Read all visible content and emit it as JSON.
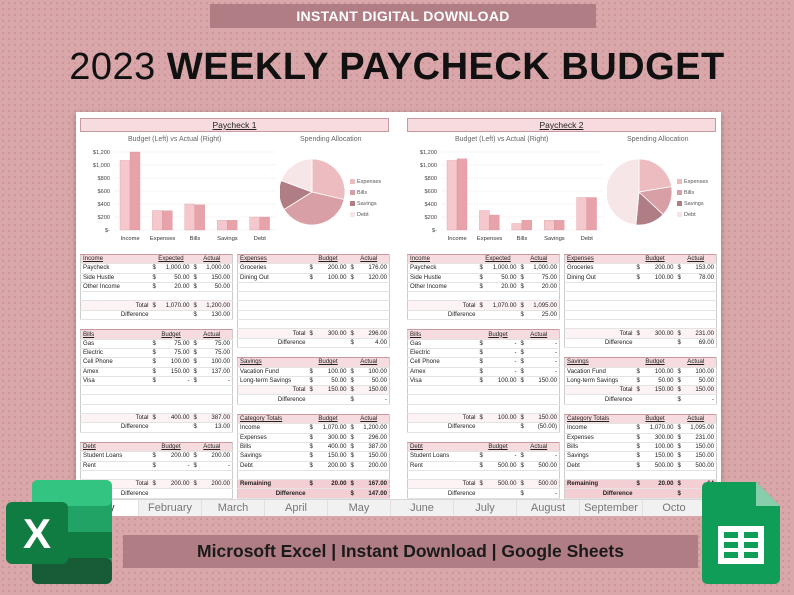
{
  "banner": {
    "text": "INSTANT DIGITAL DOWNLOAD"
  },
  "title": {
    "year": "2023",
    "main": "WEEKLY PAYCHECK BUDGET"
  },
  "footer": {
    "text": "Microsoft Excel | Instant Download | Google Sheets"
  },
  "icons": {
    "excel": "excel-app-icon",
    "sheets": "google-sheets-app-icon"
  },
  "colors": {
    "accent": "#b07d84",
    "header_fill": "#f6dcdf",
    "background": "#d9a7aa",
    "expected_bar": "#f4c8cc",
    "actual_bar": "#e8a3aa"
  },
  "tabs": [
    "ary",
    "February",
    "March",
    "April",
    "May",
    "June",
    "July",
    "August",
    "September",
    "Octo"
  ],
  "paychecks": [
    {
      "title": "Paycheck 1",
      "bar_title": "Budget (Left) vs Actual (Right)",
      "pie_title": "Spending Allocation",
      "income": {
        "header": [
          "Income",
          "Expected",
          "Actual"
        ],
        "rows": [
          [
            "Paycheck",
            "1,000.00",
            "1,000.00"
          ],
          [
            "Side Hustle",
            "50.00",
            "150.00"
          ],
          [
            "Other Income",
            "20.00",
            "50.00"
          ]
        ],
        "total": [
          "Total",
          "1,070.00",
          "1,200.00"
        ],
        "difference": [
          "Difference",
          "",
          "130.00"
        ]
      },
      "bills": {
        "header": [
          "Bills",
          "Budget",
          "Actual"
        ],
        "rows": [
          [
            "Gas",
            "75.00",
            "75.00"
          ],
          [
            "Electric",
            "75.00",
            "75.00"
          ],
          [
            "Cell Phone",
            "100.00",
            "100.00"
          ],
          [
            "Amex",
            "150.00",
            "137.00"
          ],
          [
            "Visa",
            "-",
            "-"
          ]
        ],
        "total": [
          "Total",
          "400.00",
          "387.00"
        ],
        "difference": [
          "Difference",
          "",
          "13.00"
        ]
      },
      "debt": {
        "header": [
          "Debt",
          "Budget",
          "Actual"
        ],
        "rows": [
          [
            "Student Loans",
            "200.00",
            "200.00"
          ],
          [
            "Rent",
            "-",
            "-"
          ]
        ],
        "total": [
          "Total",
          "200.00",
          "200.00"
        ],
        "difference": [
          "Difference",
          "",
          ""
        ]
      },
      "expenses": {
        "header": [
          "Expenses",
          "Budget",
          "Actual"
        ],
        "rows": [
          [
            "Groceries",
            "200.00",
            "176.00"
          ],
          [
            "Dining Out",
            "100.00",
            "120.00"
          ]
        ],
        "total": [
          "Total",
          "300.00",
          "296.00"
        ],
        "difference": [
          "Difference",
          "",
          "4.00"
        ]
      },
      "savings": {
        "header": [
          "Savings",
          "Budget",
          "Actual"
        ],
        "rows": [
          [
            "Vacation Fund",
            "100.00",
            "100.00"
          ],
          [
            "Long-term Savings",
            "50.00",
            "50.00"
          ]
        ],
        "total": [
          "Total",
          "150.00",
          "150.00"
        ],
        "difference": [
          "Difference",
          "",
          "-"
        ]
      },
      "category_totals": {
        "header": [
          "Category Totals",
          "Budget",
          "Actual"
        ],
        "rows": [
          [
            "Income",
            "1,070.00",
            "1,200.00"
          ],
          [
            "Expenses",
            "300.00",
            "296.00"
          ],
          [
            "Bills",
            "400.00",
            "387.00"
          ],
          [
            "Savings",
            "150.00",
            "150.00"
          ],
          [
            "Debt",
            "200.00",
            "200.00"
          ]
        ],
        "remaining": [
          "Remaining",
          "20.00",
          "167.00"
        ],
        "difference": [
          "Difference",
          "",
          "147.00"
        ]
      }
    },
    {
      "title": "Paycheck 2",
      "bar_title": "Budget (Left) vs Actual (Right)",
      "pie_title": "Spending Allocation",
      "income": {
        "header": [
          "Income",
          "Expected",
          "Actual"
        ],
        "rows": [
          [
            "Paycheck",
            "1,000.00",
            "1,000.00"
          ],
          [
            "Side Hustle",
            "50.00",
            "75.00"
          ],
          [
            "Other Income",
            "20.00",
            "20.00"
          ]
        ],
        "total": [
          "Total",
          "1,070.00",
          "1,095.00"
        ],
        "difference": [
          "Difference",
          "",
          "25.00"
        ]
      },
      "bills": {
        "header": [
          "Bills",
          "Budget",
          "Actual"
        ],
        "rows": [
          [
            "Gas",
            "-",
            "-"
          ],
          [
            "Electric",
            "-",
            "-"
          ],
          [
            "Cell Phone",
            "-",
            "-"
          ],
          [
            "Amex",
            "-",
            "-"
          ],
          [
            "Visa",
            "100.00",
            "150.00"
          ]
        ],
        "total": [
          "Total",
          "100.00",
          "150.00"
        ],
        "difference": [
          "Difference",
          "",
          "(50.00)"
        ]
      },
      "debt": {
        "header": [
          "Debt",
          "Budget",
          "Actual"
        ],
        "rows": [
          [
            "Student Loans",
            "-",
            "-"
          ],
          [
            "Rent",
            "500.00",
            "500.00"
          ]
        ],
        "total": [
          "Total",
          "500.00",
          "500.00"
        ],
        "difference": [
          "Difference",
          "",
          "-"
        ]
      },
      "expenses": {
        "header": [
          "Expenses",
          "Budget",
          "Actual"
        ],
        "rows": [
          [
            "Groceries",
            "200.00",
            "153.00"
          ],
          [
            "Dining Out",
            "100.00",
            "78.00"
          ]
        ],
        "total": [
          "Total",
          "300.00",
          "231.00"
        ],
        "difference": [
          "Difference",
          "",
          "69.00"
        ]
      },
      "savings": {
        "header": [
          "Savings",
          "Budget",
          "Actual"
        ],
        "rows": [
          [
            "Vacation Fund",
            "100.00",
            "100.00"
          ],
          [
            "Long-term Savings",
            "50.00",
            "50.00"
          ]
        ],
        "total": [
          "Total",
          "150.00",
          "150.00"
        ],
        "difference": [
          "Difference",
          "",
          "-"
        ]
      },
      "category_totals": {
        "header": [
          "Category Totals",
          "Budget",
          "Actual"
        ],
        "rows": [
          [
            "Income",
            "1,070.00",
            "1,095.00"
          ],
          [
            "Expenses",
            "300.00",
            "231.00"
          ],
          [
            "Bills",
            "100.00",
            "150.00"
          ],
          [
            "Savings",
            "150.00",
            "150.00"
          ],
          [
            "Debt",
            "500.00",
            "500.00"
          ]
        ],
        "remaining": [
          "Remaining",
          "20.00",
          "64"
        ],
        "difference": [
          "Difference",
          "",
          "44"
        ]
      }
    }
  ],
  "chart_data": [
    {
      "type": "bar",
      "title": "Budget (Left) vs Actual (Right)",
      "categories": [
        "Income",
        "Expenses",
        "Bills",
        "Savings",
        "Debt"
      ],
      "series": [
        {
          "values": [
            1070,
            300,
            400,
            150,
            200
          ]
        },
        {
          "values": [
            1200,
            296,
            387,
            150,
            200
          ]
        }
      ],
      "ylim": [
        0,
        1200
      ],
      "yticks": [
        "$1,200",
        "$1,000",
        "$800",
        "$600",
        "$400",
        "$200",
        "$-"
      ]
    },
    {
      "type": "pie",
      "title": "Spending Allocation",
      "categories": [
        "Expenses",
        "Bills",
        "Savings",
        "Debt"
      ],
      "values": [
        296,
        387,
        150,
        200
      ],
      "colors": [
        "#ecbcc1",
        "#d8a0a6",
        "#b07d84",
        "#f7e6e8"
      ]
    },
    {
      "type": "bar",
      "title": "Budget (Left) vs Actual (Right)",
      "categories": [
        "Income",
        "Expenses",
        "Bills",
        "Savings",
        "Debt"
      ],
      "series": [
        {
          "values": [
            1070,
            300,
            100,
            150,
            500
          ]
        },
        {
          "values": [
            1095,
            231,
            150,
            150,
            500
          ]
        }
      ],
      "ylim": [
        0,
        1200
      ],
      "yticks": [
        "$1,200",
        "$1,000",
        "$800",
        "$600",
        "$400",
        "$200",
        "$-"
      ]
    },
    {
      "type": "pie",
      "title": "Spending Allocation",
      "categories": [
        "Expenses",
        "Bills",
        "Savings",
        "Debt"
      ],
      "values": [
        231,
        150,
        150,
        500
      ],
      "colors": [
        "#ecbcc1",
        "#d8a0a6",
        "#b07d84",
        "#f7e6e8"
      ]
    }
  ]
}
